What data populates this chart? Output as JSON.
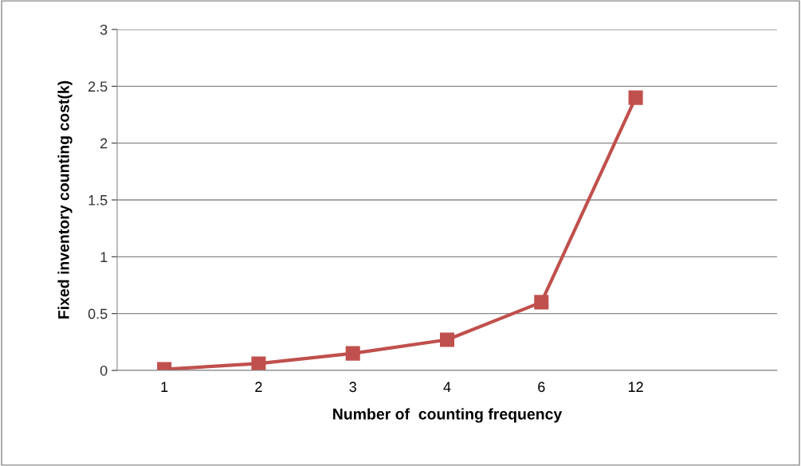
{
  "chart_data": {
    "type": "line",
    "xlabel": "Number of  counting frequency",
    "ylabel": "Fixed inventory counting cost(k)",
    "categories": [
      "1",
      "2",
      "3",
      "4",
      "6",
      "12",
      null
    ],
    "series": [
      {
        "color": "#c0504d",
        "values": [
          0.01,
          0.06,
          0.15,
          0.27,
          0.6,
          2.4,
          null
        ]
      }
    ],
    "ylim": [
      0,
      3
    ],
    "yticks": [
      0,
      0.5,
      1,
      1.5,
      2,
      2.5,
      3
    ],
    "grid": "y",
    "marker": "square",
    "line_style": "solid"
  }
}
